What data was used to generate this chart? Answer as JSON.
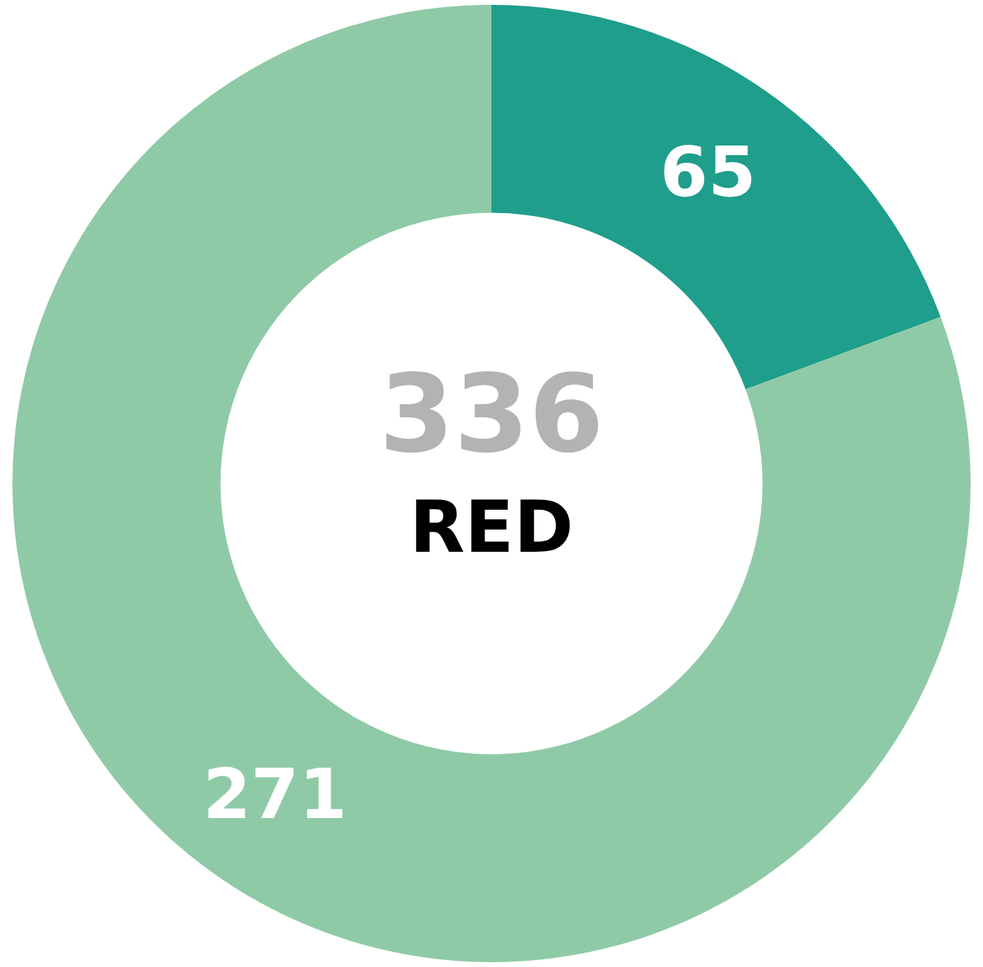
{
  "chart_data": {
    "type": "donut",
    "categories": [
      null,
      null
    ],
    "values": [
      65,
      271
    ],
    "colors": [
      "#1f9e8c",
      "#8fcaa6"
    ],
    "data_labels": true,
    "annotations": [
      "336",
      "RED"
    ]
  }
}
